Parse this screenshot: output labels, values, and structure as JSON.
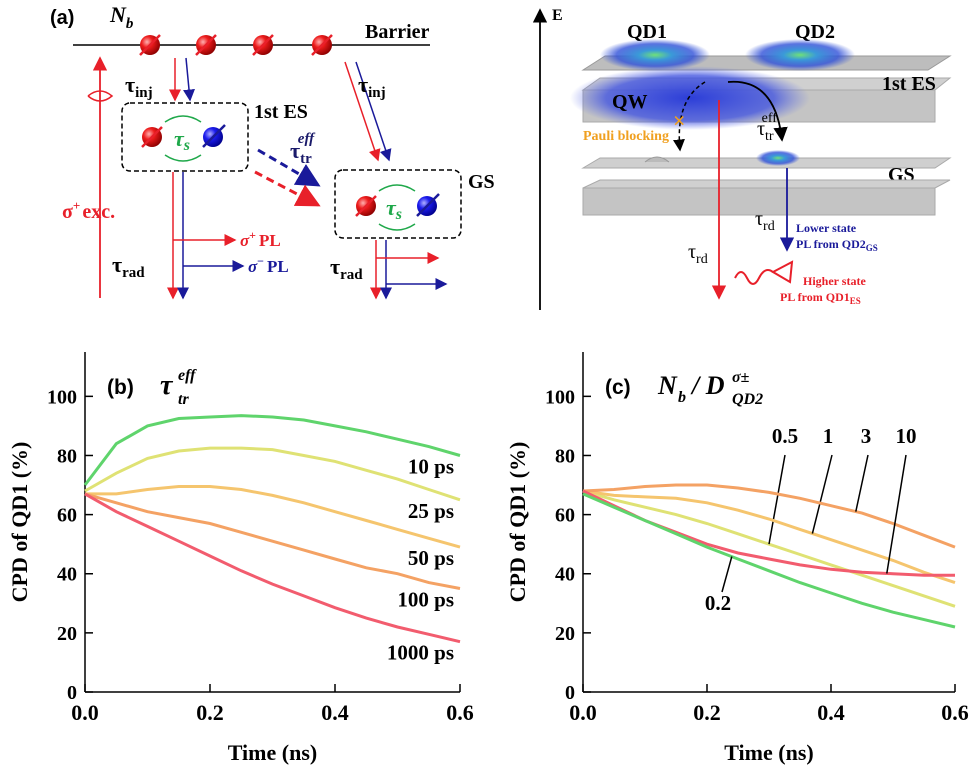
{
  "panel_a": {
    "label": "(a)",
    "nb": [
      "N",
      "b"
    ],
    "barrier": "Barrier",
    "tau_inj": [
      "τ",
      "inj"
    ],
    "es": "1st ES",
    "tau_s": [
      "τ",
      "s"
    ],
    "tau_tr": [
      "τ",
      "tr",
      "eff"
    ],
    "gs": "GS",
    "exc": [
      "σ",
      "+",
      "exc."
    ],
    "tau_rad": [
      "τ",
      "rad"
    ],
    "pl_plus": [
      "σ",
      "+",
      "PL"
    ],
    "pl_minus": [
      "σ",
      "−",
      "PL"
    ]
  },
  "panel_right": {
    "axis": "E",
    "qd1": "QD1",
    "qd2": "QD2",
    "es": "1st ES",
    "qw": "QW",
    "pauli": "Pauli blocking",
    "tau_tr": [
      "τ",
      "tr",
      "eff"
    ],
    "gs": "GS",
    "tau_rd": [
      "τ",
      "rd"
    ],
    "lower": [
      "Lower state",
      "PL from QD2",
      "GS"
    ],
    "higher": [
      "Higher state",
      "PL from QD1",
      "ES"
    ]
  },
  "chart_data": [
    {
      "type": "line",
      "title": "(b)",
      "series_title": [
        "τ",
        "tr",
        "eff"
      ],
      "x_label": "Time (ns)",
      "y_label": "CPD of QD1 (%)",
      "x": [
        0,
        0.05,
        0.1,
        0.15,
        0.2,
        0.25,
        0.3,
        0.35,
        0.4,
        0.45,
        0.5,
        0.55,
        0.6
      ],
      "xlim": [
        0,
        0.6
      ],
      "xticks": [
        {
          "value": 0,
          "label": "0.0"
        },
        0.2,
        0.4,
        0.6
      ],
      "ylim": [
        0,
        115
      ],
      "yticks": [
        0,
        20,
        40,
        60,
        80,
        100
      ],
      "series": [
        {
          "name": "10 ps",
          "color": "#5fd46c",
          "values": [
            70,
            84,
            90,
            92.5,
            93,
            93.5,
            93,
            92,
            90,
            88,
            85.5,
            83,
            80
          ]
        },
        {
          "name": "25 ps",
          "color": "#dfe274",
          "values": [
            68,
            74,
            79,
            81.5,
            82.5,
            82.5,
            82,
            80,
            78,
            75,
            72,
            68.5,
            65
          ]
        },
        {
          "name": "50 ps",
          "color": "#f5c56e",
          "values": [
            67,
            67,
            68.5,
            69.5,
            69.5,
            68.5,
            66.5,
            64,
            61,
            58,
            55,
            52,
            49
          ]
        },
        {
          "name": "100 ps",
          "color": "#f4a264",
          "values": [
            67,
            64,
            61,
            59,
            57,
            54,
            51,
            48,
            45,
            42,
            40,
            37,
            35
          ]
        },
        {
          "name": "1000 ps",
          "color": "#f25c6e",
          "values": [
            67,
            61,
            56,
            51,
            46,
            41,
            36.5,
            32.5,
            28.5,
            25,
            22,
            19.5,
            17
          ]
        }
      ]
    },
    {
      "type": "line",
      "title": "(c)",
      "series_title": [
        "N",
        "b",
        "/ D",
        "QD2",
        "σ±"
      ],
      "x_label": "Time (ns)",
      "y_label": "CPD of QD1 (%)",
      "x": [
        0,
        0.05,
        0.1,
        0.15,
        0.2,
        0.25,
        0.3,
        0.35,
        0.4,
        0.45,
        0.5,
        0.55,
        0.6
      ],
      "xlim": [
        0,
        0.6
      ],
      "xticks": [
        {
          "value": 0,
          "label": "0.0"
        },
        0.2,
        0.4,
        0.6
      ],
      "ylim": [
        0,
        115
      ],
      "yticks": [
        0,
        20,
        40,
        60,
        80,
        100
      ],
      "series": [
        {
          "name": "0.5",
          "color": "#dfe274",
          "values": [
            68,
            65,
            62.5,
            60,
            57,
            53.5,
            50,
            46.5,
            43,
            39.5,
            36,
            32.5,
            29
          ]
        },
        {
          "name": "1",
          "color": "#f5c56e",
          "values": [
            68,
            66.5,
            66,
            65.5,
            64,
            61.5,
            58.5,
            55,
            51.5,
            48,
            44.5,
            40.5,
            37
          ]
        },
        {
          "name": "3",
          "color": "#f4a264",
          "values": [
            68,
            68.5,
            69.5,
            70,
            70,
            69,
            67.5,
            65.5,
            63,
            60.5,
            57,
            53,
            49
          ]
        },
        {
          "name": "10",
          "color": "#f25c6e",
          "values": [
            68,
            63,
            58,
            54,
            50,
            47,
            45,
            43,
            41.5,
            40.5,
            40,
            39.5,
            39.5
          ]
        },
        {
          "name": "0.2",
          "color": "#5fd46c",
          "values": [
            67,
            62.5,
            58,
            53.5,
            49,
            45,
            41,
            37,
            33.5,
            30,
            27,
            24.5,
            22
          ]
        }
      ]
    }
  ]
}
